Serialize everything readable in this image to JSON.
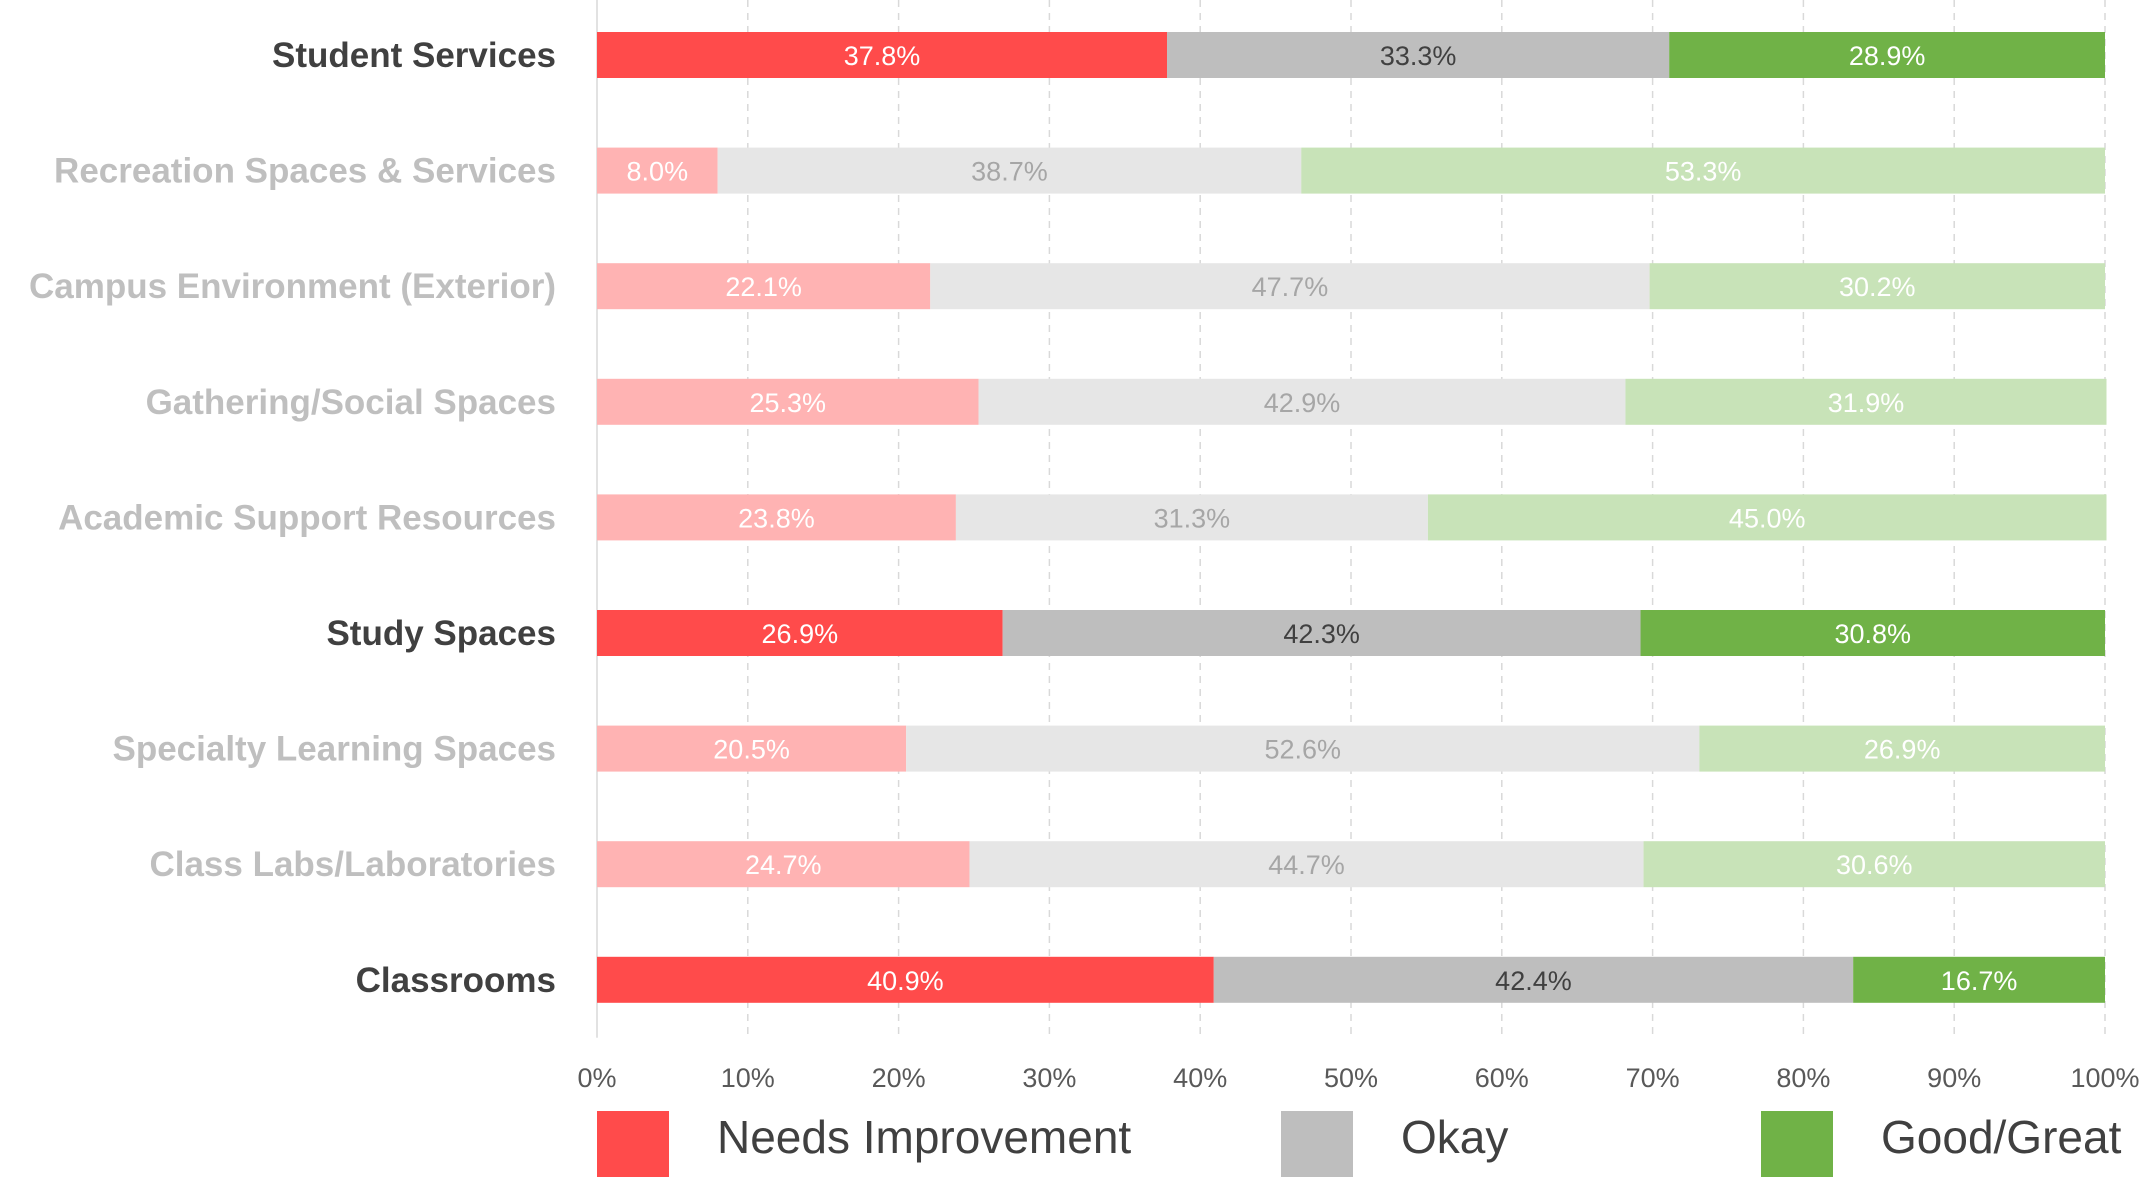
{
  "chart_data": {
    "type": "bar",
    "orientation": "horizontal",
    "stacked": "percent",
    "categories": [
      "Student Services",
      "Recreation Spaces & Services",
      "Campus Environment (Exterior)",
      "Gathering/Social Spaces",
      "Academic Support Resources",
      "Study Spaces",
      "Specialty Learning Spaces",
      "Class Labs/Laboratories",
      "Classrooms"
    ],
    "highlighted": [
      true,
      false,
      false,
      false,
      false,
      true,
      false,
      false,
      true
    ],
    "series": [
      {
        "name": "Needs Improvement",
        "color": "#FF4B4B",
        "faded_color": "#FFB3B3",
        "values": [
          37.8,
          8.0,
          22.1,
          25.3,
          23.8,
          26.9,
          20.5,
          24.7,
          40.9
        ]
      },
      {
        "name": "Okay",
        "color": "#BEBEBE",
        "faded_color": "#E6E6E6",
        "values": [
          33.3,
          38.7,
          47.7,
          42.9,
          31.3,
          42.3,
          52.6,
          44.7,
          42.4
        ]
      },
      {
        "name": "Good/Great",
        "color": "#70B247",
        "faded_color": "#C8E3B8",
        "values": [
          28.9,
          53.3,
          30.2,
          31.9,
          45.0,
          30.8,
          26.9,
          30.6,
          16.7
        ]
      }
    ],
    "data_labels": [
      [
        "37.8%",
        "8.0%",
        "22.1%",
        "25.3%",
        "23.8%",
        "26.9%",
        "20.5%",
        "24.7%",
        "40.9%"
      ],
      [
        "33.3%",
        "38.7%",
        "47.7%",
        "42.9%",
        "31.3%",
        "42.3%",
        "52.6%",
        "44.7%",
        "42.4%"
      ],
      [
        "28.9%",
        "53.3%",
        "30.2%",
        "31.9%",
        "45.0%",
        "30.8%",
        "26.9%",
        "30.6%",
        "16.7%"
      ]
    ],
    "xlim": [
      0,
      100
    ],
    "x_ticks": [
      "0%",
      "10%",
      "20%",
      "30%",
      "40%",
      "50%",
      "60%",
      "70%",
      "80%",
      "90%",
      "100%"
    ],
    "grid": "vertical dashed",
    "legend_position": "bottom",
    "title": "",
    "xlabel": "",
    "ylabel": ""
  },
  "colors": {
    "highlight_text": "#404040",
    "faded_text": "#BFBFBF",
    "highlight_gray_text": "#404040",
    "faded_gray_text": "#A6A6A6",
    "grid": "#D9D9D9",
    "axis": "#D9D9D9"
  }
}
